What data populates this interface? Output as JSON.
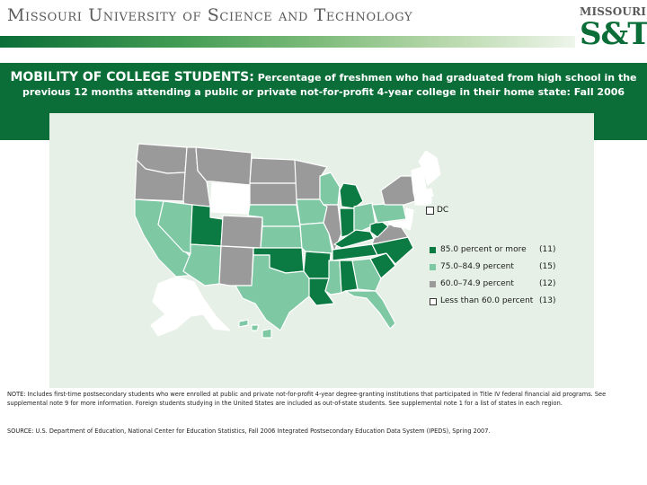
{
  "header": {
    "university": "Missouri University of Science and Technology",
    "logo_top": "MISSOURI",
    "logo_main": "S&T"
  },
  "caption": {
    "lead": "MOBILITY OF COLLEGE STUDENTS:",
    "text": "Percentage of freshmen who had graduated from high school in the previous 12 months attending a public or private not-for-profit 4-year college in their home state: Fall 2006"
  },
  "colors": {
    "brand_green": "#0b6e38",
    "high": "#0c7a43",
    "mid": "#7ec8a4",
    "low": "#9a9a9a",
    "lowest": "#ffffff",
    "panel": "#e6f0e6"
  },
  "legend": {
    "items": [
      {
        "label": "85.0 percent or more",
        "count": "(11)",
        "color": "#0c7a43"
      },
      {
        "label": "75.0–84.9 percent",
        "count": "(15)",
        "color": "#7ec8a4"
      },
      {
        "label": "60.0–74.9 percent",
        "count": "(12)",
        "color": "#9a9a9a"
      },
      {
        "label": "Less than 60.0 percent",
        "count": "(13)",
        "color": "#ffffff"
      }
    ],
    "dc_label": "DC"
  },
  "note": "NOTE: Includes first-time postsecondary students who were enrolled at public and private not-for-profit 4-year degree-granting institutions that participated in Title IV federal financial aid programs. See supplemental note 9 for more information. Foreign students studying in the United States are included as out-of-state students. See supplemental note 1 for a list of states in each region.",
  "source": "SOURCE: U.S. Department of Education, National Center for Education Statistics, Fall 2006 Integrated Postsecondary Education Data System (IPEDS), Spring 2007."
}
